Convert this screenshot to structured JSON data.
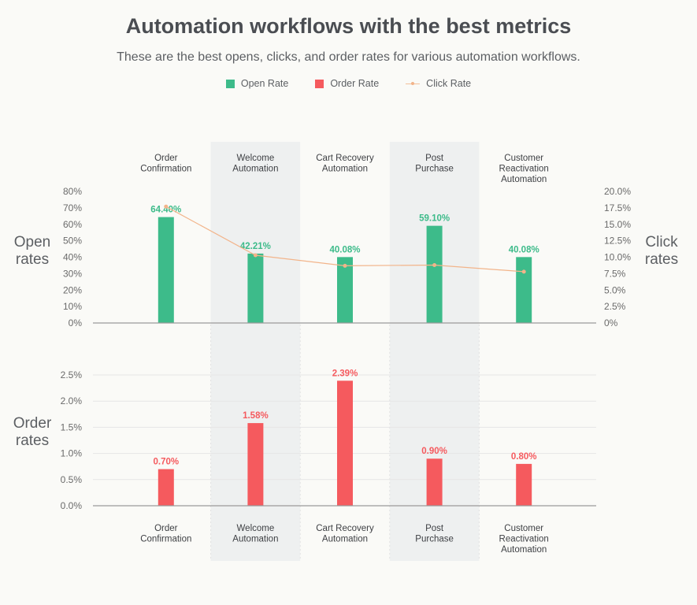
{
  "header": {
    "title": "Automation workflows with the best metrics",
    "subtitle": "These are the best opens, clicks, and order rates for various automation workflows."
  },
  "legend": [
    {
      "label": "Open Rate",
      "color": "#3dbb8a"
    },
    {
      "label": "Order Rate",
      "color": "#f55a5e"
    },
    {
      "label": "Click Rate",
      "color": "#f2b48a"
    }
  ],
  "colors": {
    "open": "#3dbb8a",
    "order": "#f55a5e",
    "click": "#f2b48a",
    "band": "#eef0f0",
    "axis": "#9a9a9a",
    "grid": "#e6e6e6"
  },
  "chart_data": [
    {
      "type": "bar",
      "categories": [
        [
          "Order",
          "Confirmation"
        ],
        [
          "Welcome",
          "Automation"
        ],
        [
          "Cart Recovery",
          "Automation"
        ],
        [
          "Post",
          "Purchase"
        ],
        [
          "Customer",
          "Reactivation",
          "Automation"
        ]
      ],
      "series": [
        {
          "name": "Open Rate",
          "values": [
            64.4,
            42.21,
            40.08,
            59.1,
            40.08
          ],
          "labels": [
            "64.40%",
            "42.21%",
            "40.08%",
            "59.10%",
            "40.08%"
          ]
        },
        {
          "name": "Click Rate",
          "type": "line",
          "axis": "right",
          "values": [
            17.7,
            10.3,
            8.7,
            8.8,
            7.8
          ]
        }
      ],
      "ylabel": [
        "Open",
        "rates"
      ],
      "ylabel_right": [
        "Click",
        "rates"
      ],
      "ylim": [
        0,
        80
      ],
      "ylim_right": [
        0,
        20
      ],
      "yticks": [
        "0%",
        "10%",
        "20%",
        "30%",
        "40%",
        "50%",
        "60%",
        "70%",
        "80%"
      ],
      "yticks_right": [
        "0%",
        "2.5%",
        "5.0%",
        "7.5%",
        "10.0%",
        "12.5%",
        "15.0%",
        "17.5%",
        "20.0%"
      ],
      "grid": false,
      "category_labels_position": "top"
    },
    {
      "type": "bar",
      "categories": [
        [
          "Order",
          "Confirmation"
        ],
        [
          "Welcome",
          "Automation"
        ],
        [
          "Cart Recovery",
          "Automation"
        ],
        [
          "Post",
          "Purchase"
        ],
        [
          "Customer",
          "Reactivation",
          "Automation"
        ]
      ],
      "series": [
        {
          "name": "Order Rate",
          "values": [
            0.7,
            1.58,
            2.39,
            0.9,
            0.8
          ],
          "labels": [
            "0.70%",
            "1.58%",
            "2.39%",
            "0.90%",
            "0.80%"
          ]
        }
      ],
      "ylabel": [
        "Order",
        "rates"
      ],
      "ylim": [
        0,
        2.5
      ],
      "yticks": [
        "0.0%",
        "0.5%",
        "1.0%",
        "1.5%",
        "2.0%",
        "2.5%"
      ],
      "grid": true,
      "category_labels_position": "bottom"
    }
  ]
}
